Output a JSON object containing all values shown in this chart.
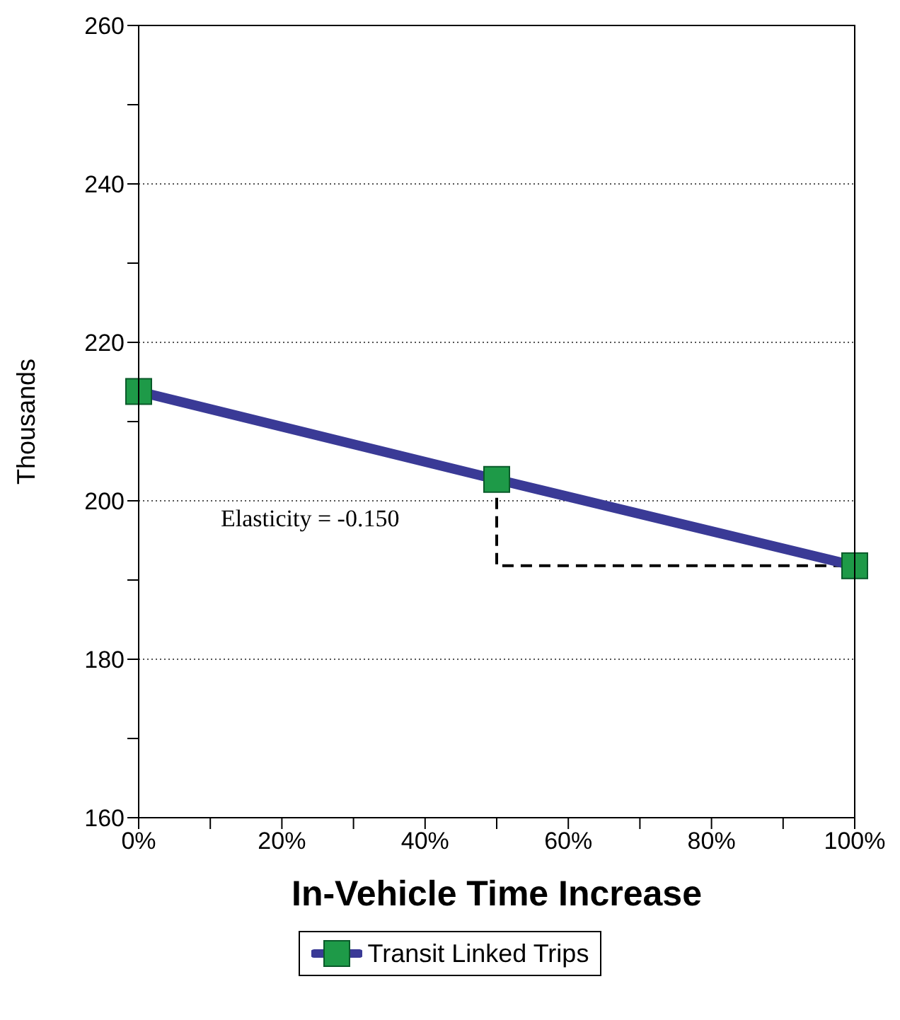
{
  "chart_data": {
    "type": "line",
    "xlabel": "In-Vehicle Time Increase",
    "ylabel": "Thousands",
    "x": [
      0,
      50,
      100
    ],
    "series": [
      {
        "type": "step",
        "color": "#000000",
        "line_style": "dashed",
        "marker": "none",
        "values": [
          null,
          202.7,
          191.8
        ]
      },
      {
        "name": "Transit Linked Trips",
        "color": "#3a3a96",
        "colors": [
          "#1e9a48",
          "#1e9a48",
          "#1e9a48"
        ],
        "values": [
          213.8,
          202.7,
          191.8
        ]
      }
    ],
    "xlim": [
      0,
      100
    ],
    "xticks": [
      {
        "value": 0,
        "label": "0%"
      },
      {
        "value": 10,
        "label": null
      },
      {
        "value": 20,
        "label": "20%"
      },
      {
        "value": 30,
        "label": null
      },
      {
        "value": 40,
        "label": "40%"
      },
      {
        "value": 50,
        "label": null
      },
      {
        "value": 60,
        "label": "60%"
      },
      {
        "value": 70,
        "label": null
      },
      {
        "value": 80,
        "label": "80%"
      },
      {
        "value": 90,
        "label": null
      },
      {
        "value": 100,
        "label": "100%"
      }
    ],
    "ylim": [
      160,
      260
    ],
    "yticks": [
      160,
      {
        "value": 170,
        "label": null
      },
      180,
      {
        "value": 190,
        "label": null
      },
      200,
      {
        "value": 210,
        "label": null
      },
      220,
      {
        "value": 230,
        "label": null
      },
      240,
      {
        "value": 250,
        "label": null
      },
      260
    ],
    "grid": "y",
    "marker": "square",
    "legend": "bottom",
    "annotations": [
      "Elasticity = -0.150"
    ]
  }
}
